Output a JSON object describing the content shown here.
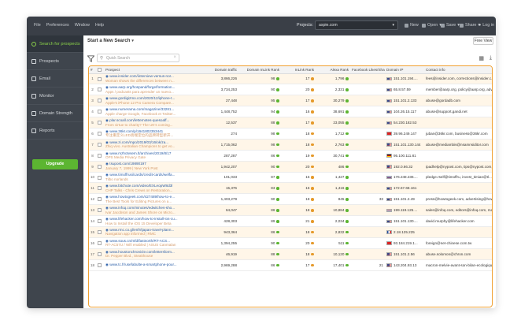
{
  "menu": [
    "File",
    "Preferences",
    "Window",
    "Help"
  ],
  "topbar": {
    "projects_label": "Projects:",
    "project_value": "aspie.com",
    "new": "New",
    "open": "Open",
    "save": "Save",
    "share": "Share",
    "login": "Log in"
  },
  "sidebar": {
    "items": [
      {
        "label": "Search for prospects",
        "icon": "search-icon"
      },
      {
        "label": "Prospects",
        "icon": "person-icon"
      },
      {
        "label": "Email",
        "icon": "envelope-icon"
      },
      {
        "label": "Monitor",
        "icon": "eye-icon"
      },
      {
        "label": "Domain Strength",
        "icon": "gauge-icon"
      },
      {
        "label": "Reports",
        "icon": "report-icon"
      }
    ],
    "upgrade": "Upgrade"
  },
  "main": {
    "title": "Start a New Search",
    "view_button": "Free View",
    "search_placeholder": "Quick Search"
  },
  "table": {
    "headers": [
      "#",
      "",
      "Prospect",
      "Domain traffic",
      "Domain InLink Rank",
      "InLink Rank",
      "Alexa Rank",
      "Facebook Likes/Shar...",
      "Domain IP",
      "Contact info"
    ],
    "rows": [
      {
        "n": "1",
        "url": "www.insider.com/iinterview-versus-nor...",
        "desc": "Woman shows the differences between n...",
        "traffic": "3,866,226",
        "dir": "98",
        "dir_c": "g",
        "ir": "17",
        "ir_c": "o",
        "alexa": "1,796",
        "alexa_c": "g",
        "fb": "",
        "flag": "us",
        "ip": "151.101.194....",
        "contact": "fees@insider.com, corrections@insider.c..."
      },
      {
        "n": "2",
        "url": "www.aarp.org/hospand/forge/formation...",
        "desc": "Apps / podcasts para aprender un nuevo...",
        "traffic": "3,734,253",
        "dir": "90",
        "dir_c": "g",
        "ir": "20",
        "ir_c": "o",
        "alexa": "2,331",
        "alexa_c": "g",
        "fb": "",
        "flag": "us",
        "ip": "65.8.57.59",
        "contact": "member@aarp.org, policy@aarp.org, adve..."
      },
      {
        "n": "3",
        "url": "www.gordigizmo.com/2020/12/iphone-t...",
        "desc": "Apple's iPhone 12 Pro Camera Compare...",
        "traffic": "27,448",
        "dir": "95",
        "dir_c": "g",
        "ir": "17",
        "ir_c": "o",
        "alexa": "30,279",
        "alexa_c": "g",
        "fb": "",
        "flag": "us",
        "ip": "151.101.2.133",
        "contact": "abuse@gordadb.com"
      },
      {
        "n": "4",
        "url": "www.numerama.com/magazine/33281...",
        "desc": "Apple charge Google, Facebook et Twitter...",
        "traffic": "1,448,752",
        "dir": "94",
        "dir_c": "g",
        "ir": "16",
        "ir_c": "o",
        "alexa": "38,691",
        "alexa_c": "g",
        "fb": "",
        "flag": "us",
        "ip": "104.26.15.117",
        "contact": "abuse@support.gandi.net"
      },
      {
        "n": "5",
        "url": "plar.scoall.com/letternotes-quesoaff...",
        "desc": "From virtue to charity? The UK's coming...",
        "traffic": "12,537",
        "dir": "88",
        "dir_c": "g",
        "ir": "17",
        "ir_c": "o",
        "alexa": "23,055",
        "alexa_c": "g",
        "fb": "",
        "flag": "us",
        "ip": "54.230.182.53",
        "contact": ""
      },
      {
        "n": "6",
        "url": "www.36kr.com/p/1641802353441",
        "desc": "专注重定义LED高端定位的品牌转型新开...",
        "traffic": "274",
        "dir": "98",
        "dir_c": "g",
        "ir": "18",
        "ir_c": "o",
        "alexa": "1,712",
        "alexa_c": "g",
        "fb": "",
        "flag": "cn",
        "ip": "39.96.249.147",
        "contact": "juban@36kr.com, business@36kr.com"
      },
      {
        "n": "7",
        "url": "www.zi.com/mpo/2019/03/16/ok/za...",
        "desc": "Zhiq vivo. Australian Champions to get vo...",
        "traffic": "1,715,062",
        "dir": "98",
        "dir_c": "g",
        "ir": "18",
        "ir_c": "o",
        "alexa": "2,763",
        "alexa_c": "g",
        "fb": "",
        "flag": "us",
        "ip": "151.101.130.144",
        "contact": "abuse@mediambis@nsamnsiditor.com"
      },
      {
        "n": "8",
        "url": "www.mzhotvsem.lt/archives/2019/8/17",
        "desc": "OPS Media Privacy Gate",
        "traffic": "287,287",
        "dir": "86",
        "dir_c": "g",
        "ir": "19",
        "ir_c": "o",
        "alexa": "30,741",
        "alexa_c": "g",
        "fb": "",
        "flag": "de",
        "ip": "95.100.111.81",
        "contact": ""
      },
      {
        "n": "9",
        "url": "tsupost.com/19890197",
        "desc": "January 7, 1999 | New York Post",
        "traffic": "1,942,207",
        "dir": "90",
        "dir_c": "g",
        "ir": "20",
        "ir_c": "o",
        "alexa": "486",
        "alexa_c": "g",
        "fb": "",
        "flag": "us",
        "ip": "192.0.66.32",
        "contact": "ipadhelp@nypost.com, tips@nypost.com, ..."
      },
      {
        "n": "10",
        "url": "www.timoffrusi/cards/credit-cards/welfa...",
        "desc": "Tilbo norlands",
        "traffic": "101,033",
        "dir": "87",
        "dir_c": "g",
        "ir": "15",
        "ir_c": "o",
        "alexa": "1,427",
        "alexa_c": "g",
        "fb": "",
        "flag": "ru",
        "ip": "176.248.236....",
        "contact": "pledge.rself@timoffru, invest_timian@tl..."
      },
      {
        "n": "11",
        "url": "www.bitchute.com/video/EXLeopW8d3l",
        "desc": "CHP Talks - Chris Crews on Restoration...",
        "traffic": "15,376",
        "dir": "83",
        "dir_c": "g",
        "ir": "16",
        "ir_c": "o",
        "alexa": "1,416",
        "alexa_c": "g",
        "fb": "",
        "flag": "us",
        "ip": "172.67.68.161",
        "contact": ""
      },
      {
        "n": "12",
        "url": "www.howtogeek.com/427489/how-to-e...",
        "desc": "The Best Tools for Editing Pictures on a...",
        "traffic": "1,403,279",
        "dir": "90",
        "dir_c": "g",
        "ir": "18",
        "ir_c": "o",
        "alexa": "845",
        "alexa_c": "g",
        "fb": "33",
        "flag": "us",
        "ip": "151.101.2.49",
        "contact": "press@howtogeek.com, advertising@how..."
      },
      {
        "n": "13",
        "url": "www.infoq.com/minutes/edwitches-sho...",
        "desc": "Ivar Jacobson and James Shore on Micro...",
        "traffic": "64,047",
        "dir": "86",
        "dir_c": "g",
        "ir": "18",
        "ir_c": "o",
        "alexa": "10,884",
        "alexa_c": "g",
        "fb": "",
        "flag": "nl",
        "ip": "199.119.125....",
        "contact": "sales@infoq.com, editors@infoq.com, ma..."
      },
      {
        "n": "14",
        "url": "www.lifehacker.com/how-to-install-ios-cu...",
        "desc": "How to Install the iOS 15 Developer Beta",
        "traffic": "428,303",
        "dir": "89",
        "dir_c": "g",
        "ir": "21",
        "ir_c": "o",
        "alexa": "2,034",
        "alexa_c": "g",
        "fb": "",
        "flag": "us",
        "ip": "151.101.130....",
        "contact": "david.murphy@lifehacker.com"
      },
      {
        "n": "15",
        "url": "www.rmc.co.gl/enfr/tjapan-travel-plann...",
        "desc": "Navigation app informed | RMC",
        "traffic": "943,364",
        "dir": "86",
        "dir_c": "g",
        "ir": "18",
        "ir_c": "o",
        "alexa": "2,832",
        "alexa_c": "g",
        "fb": "",
        "flag": "fr",
        "ip": "2.18.125.225",
        "contact": ""
      },
      {
        "n": "16",
        "url": "www.sous.cn/mfd/fastnorth/RT-ACS...",
        "desc": "RT-AC57U / Wifi enabled | ASUS Canmalan",
        "traffic": "1,394,255",
        "dir": "90",
        "dir_c": "g",
        "ir": "20",
        "ir_c": "o",
        "alexa": "511",
        "alexa_c": "g",
        "fb": "",
        "flag": "cn",
        "ip": "93.184.219.1...",
        "contact": "foreign@net-chinese.com.tw"
      },
      {
        "n": "17",
        "url": "www.houstonchronicle.com/lettersform...",
        "desc": "Dr. Pepper Blvd., Steakhouse",
        "traffic": "46,919",
        "dir": "88",
        "dir_c": "g",
        "ir": "18",
        "ir_c": "o",
        "alexa": "10,120",
        "alexa_c": "g",
        "fb": "",
        "flag": "us",
        "ip": "151.101.2.56",
        "contact": "abuse.solomon@chron.com"
      },
      {
        "n": "18",
        "url": "www.tc.fr/usefabulte-a-smartphone-pour...",
        "desc": "",
        "traffic": "2,969,288",
        "dir": "86",
        "dir_c": "g",
        "ir": "17",
        "ir_c": "o",
        "alexa": "17,401",
        "alexa_c": "g",
        "fb": "21",
        "flag": "us",
        "ip": "143.204.93.13",
        "contact": "macron-melvie-avant-son-bilan-ecologiqu..."
      }
    ]
  }
}
